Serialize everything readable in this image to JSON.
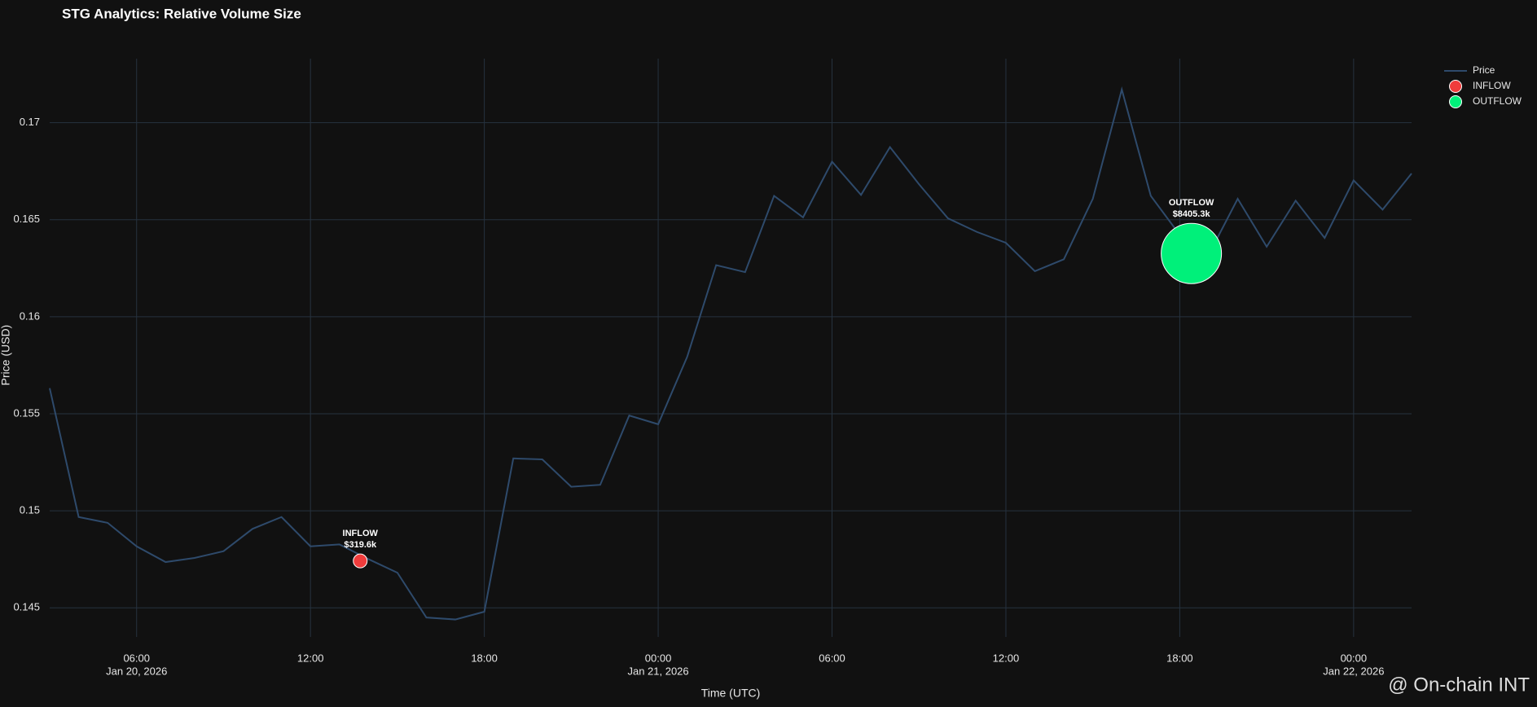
{
  "chart_data": {
    "type": "line",
    "title": "STG Analytics: Relative Volume Size",
    "x_label": "Time (UTC)",
    "y_label": "Price (USD)",
    "watermark": "@ On-chain INT",
    "x": [
      "2026-01-20T03:00",
      "2026-01-20T04:00",
      "2026-01-20T05:00",
      "2026-01-20T06:00",
      "2026-01-20T07:00",
      "2026-01-20T08:00",
      "2026-01-20T09:00",
      "2026-01-20T10:00",
      "2026-01-20T11:00",
      "2026-01-20T12:00",
      "2026-01-20T13:00",
      "2026-01-20T14:00",
      "2026-01-20T15:00",
      "2026-01-20T16:00",
      "2026-01-20T17:00",
      "2026-01-20T18:00",
      "2026-01-20T19:00",
      "2026-01-20T20:00",
      "2026-01-20T21:00",
      "2026-01-20T22:00",
      "2026-01-20T23:00",
      "2026-01-21T00:00",
      "2026-01-21T01:00",
      "2026-01-21T02:00",
      "2026-01-21T03:00",
      "2026-01-21T04:00",
      "2026-01-21T05:00",
      "2026-01-21T06:00",
      "2026-01-21T07:00",
      "2026-01-21T08:00",
      "2026-01-21T09:00",
      "2026-01-21T10:00",
      "2026-01-21T11:00",
      "2026-01-21T12:00",
      "2026-01-21T13:00",
      "2026-01-21T14:00",
      "2026-01-21T15:00",
      "2026-01-21T16:00",
      "2026-01-21T17:00",
      "2026-01-21T18:00",
      "2026-01-21T19:00",
      "2026-01-21T20:00",
      "2026-01-21T21:00",
      "2026-01-21T22:00",
      "2026-01-21T23:00",
      "2026-01-22T00:00",
      "2026-01-22T01:00",
      "2026-01-22T02:00"
    ],
    "series": [
      {
        "name": "Price",
        "color": "#2e4a6b",
        "values": [
          0.15632,
          0.14968,
          0.14938,
          0.14817,
          0.14736,
          0.14757,
          0.14792,
          0.14907,
          0.14968,
          0.14817,
          0.14827,
          0.14751,
          0.14681,
          0.1445,
          0.1444,
          0.1448,
          0.1527,
          0.15265,
          0.15124,
          0.15134,
          0.15491,
          0.15446,
          0.15793,
          0.16266,
          0.1623,
          0.16623,
          0.16512,
          0.16799,
          0.16628,
          0.16874,
          0.16683,
          0.16507,
          0.16437,
          0.16381,
          0.16235,
          0.16296,
          0.16608,
          0.17171,
          0.16623,
          0.16422,
          0.1632,
          0.16608,
          0.16361,
          0.16598,
          0.16406,
          0.16703,
          0.16552,
          0.16738
        ]
      },
      {
        "name": "INFLOW",
        "type": "scatter",
        "color": "#f03c3c",
        "x": [
          "2026-01-20T13:43"
        ],
        "values": [
          0.14742
        ],
        "sizes": [
          319.6
        ],
        "size_labels": [
          "$319.6k"
        ]
      },
      {
        "name": "OUTFLOW",
        "type": "scatter",
        "color": "#00f07a",
        "x": [
          "2026-01-21T18:24"
        ],
        "values": [
          0.16326
        ],
        "sizes": [
          8405.3
        ],
        "size_labels": [
          "$8405.3k"
        ]
      }
    ],
    "xlim": [
      "2026-01-20T03:00",
      "2026-01-22T02:00"
    ],
    "xticks": [
      {
        "value": "2026-01-20T06:00",
        "label": "06:00",
        "date": "Jan 20, 2026"
      },
      {
        "value": "2026-01-20T12:00",
        "label": "12:00"
      },
      {
        "value": "2026-01-20T18:00",
        "label": "18:00"
      },
      {
        "value": "2026-01-21T00:00",
        "label": "00:00",
        "date": "Jan 21, 2026"
      },
      {
        "value": "2026-01-21T06:00",
        "label": "06:00"
      },
      {
        "value": "2026-01-21T12:00",
        "label": "12:00"
      },
      {
        "value": "2026-01-21T18:00",
        "label": "18:00"
      },
      {
        "value": "2026-01-22T00:00",
        "label": "00:00",
        "date": "Jan 22, 2026"
      }
    ],
    "ylim": [
      0.1435,
      0.1733
    ],
    "yticks": [
      0.145,
      0.15,
      0.155,
      0.16,
      0.165,
      0.17
    ],
    "grid": true,
    "legend": "top-right"
  }
}
